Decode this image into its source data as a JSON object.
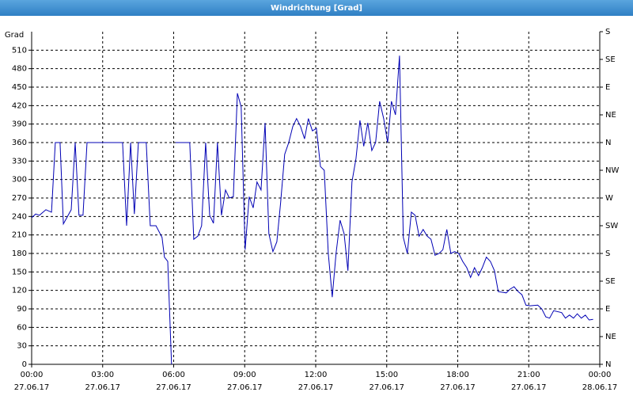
{
  "chart_data": {
    "type": "line",
    "title": "Windrichtung [Grad]",
    "ylabel": "Grad",
    "xlim": [
      0,
      24
    ],
    "xticks": [
      {
        "value": 0,
        "label": "00:00",
        "date": "27.06.17"
      },
      {
        "value": 3,
        "label": "03:00",
        "date": "27.06.17"
      },
      {
        "value": 6,
        "label": "06:00",
        "date": "27.06.17"
      },
      {
        "value": 9,
        "label": "09:00",
        "date": "27.06.17"
      },
      {
        "value": 12,
        "label": "12:00",
        "date": "27.06.17"
      },
      {
        "value": 15,
        "label": "15:00",
        "date": "27.06.17"
      },
      {
        "value": 18,
        "label": "18:00",
        "date": "27.06.17"
      },
      {
        "value": 21,
        "label": "21:00",
        "date": "27.06.17"
      },
      {
        "value": 24,
        "label": "00:00",
        "date": "28.06.17"
      }
    ],
    "ylim": [
      0,
      540
    ],
    "yticks": [
      0,
      30,
      60,
      90,
      120,
      150,
      180,
      210,
      240,
      270,
      300,
      330,
      360,
      390,
      420,
      450,
      480,
      510
    ],
    "y2lim": [
      0,
      540
    ],
    "y2ticks": [
      {
        "value": 0,
        "label": "N"
      },
      {
        "value": 45,
        "label": "NE"
      },
      {
        "value": 90,
        "label": "E"
      },
      {
        "value": 135,
        "label": "SE"
      },
      {
        "value": 180,
        "label": "S"
      },
      {
        "value": 225,
        "label": "SW"
      },
      {
        "value": 270,
        "label": "W"
      },
      {
        "value": 315,
        "label": "NW"
      },
      {
        "value": 360,
        "label": "N"
      },
      {
        "value": 405,
        "label": "NE"
      },
      {
        "value": 450,
        "label": "E"
      },
      {
        "value": 495,
        "label": "SE"
      },
      {
        "value": 540,
        "label": "S"
      }
    ],
    "grid": true,
    "x": [
      0,
      0.17,
      0.33,
      0.6,
      0.84,
      1.0,
      1.2,
      1.34,
      1.67,
      1.84,
      2.0,
      2.17,
      2.34,
      3.84,
      4.01,
      4.18,
      4.34,
      4.51,
      4.84,
      5.01,
      5.25,
      5.51,
      5.61,
      5.75,
      5.91,
      6.0,
      6.08,
      6.68,
      6.85,
      7.02,
      7.18,
      7.35,
      7.52,
      7.68,
      7.85,
      8.02,
      8.19,
      8.35,
      8.52,
      8.69,
      8.85,
      9.02,
      9.19,
      9.36,
      9.52,
      9.69,
      9.86,
      10.02,
      10.19,
      10.36,
      10.52,
      10.69,
      10.86,
      11.03,
      11.19,
      11.36,
      11.53,
      11.69,
      11.86,
      12.03,
      12.2,
      12.36,
      12.53,
      12.7,
      12.86,
      13.03,
      13.2,
      13.36,
      13.53,
      13.7,
      13.87,
      14.03,
      14.2,
      14.37,
      14.53,
      14.7,
      14.87,
      15.04,
      15.2,
      15.37,
      15.54,
      15.7,
      15.87,
      16.04,
      16.2,
      16.37,
      16.54,
      16.71,
      16.87,
      17.04,
      17.21,
      17.37,
      17.54,
      17.71,
      17.87,
      18.04,
      18.21,
      18.38,
      18.54,
      18.71,
      18.88,
      19.04,
      19.21,
      19.38,
      19.55,
      19.71,
      20.05,
      20.21,
      20.38,
      20.55,
      20.71,
      20.88,
      21.05,
      21.38,
      21.55,
      21.72,
      21.88,
      22.05,
      22.39,
      22.55,
      22.72,
      22.89,
      23.05,
      23.22,
      23.39,
      23.55,
      23.72
    ],
    "series": [
      {
        "name": "Windrichtung",
        "color": "#0000b4",
        "values": [
          238,
          244,
          242,
          251,
          247,
          360,
          360,
          228,
          251,
          360,
          242,
          242,
          360,
          360,
          225,
          360,
          244,
          360,
          360,
          225,
          225,
          206,
          174,
          167,
          0,
          null,
          360,
          360,
          203,
          208,
          225,
          360,
          242,
          229,
          360,
          242,
          283,
          270,
          272,
          440,
          418,
          186,
          272,
          254,
          296,
          283,
          392,
          212,
          183,
          199,
          263,
          341,
          360,
          386,
          399,
          386,
          366,
          399,
          379,
          383,
          321,
          315,
          180,
          109,
          180,
          234,
          212,
          152,
          296,
          334,
          396,
          354,
          392,
          347,
          360,
          427,
          399,
          360,
          427,
          405,
          501,
          206,
          180,
          247,
          242,
          208,
          219,
          208,
          203,
          177,
          180,
          186,
          219,
          180,
          183,
          180,
          167,
          157,
          141,
          157,
          144,
          157,
          174,
          167,
          152,
          118,
          116,
          122,
          126,
          118,
          113,
          96,
          95,
          96,
          90,
          77,
          75,
          87,
          84,
          75,
          80,
          75,
          82,
          75,
          80,
          72,
          73
        ]
      }
    ]
  }
}
